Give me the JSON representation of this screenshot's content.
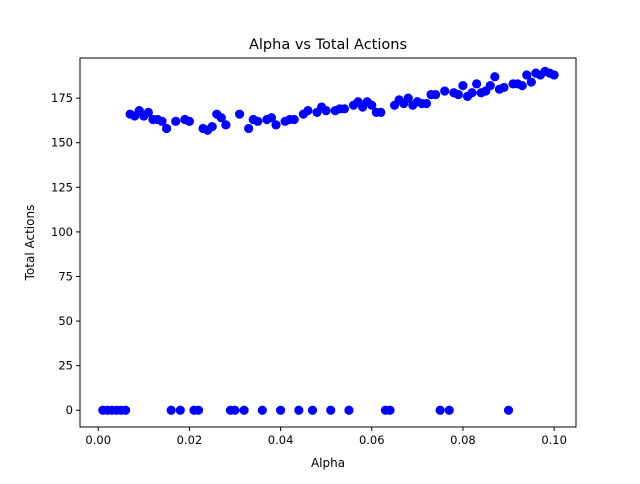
{
  "chart_data": {
    "type": "scatter",
    "title": "Alpha vs Total Actions",
    "xlabel": "Alpha",
    "ylabel": "Total Actions",
    "xlim": [
      -0.004,
      0.1048
    ],
    "ylim": [
      -9.4,
      197.5
    ],
    "xticks": [
      0.0,
      0.02,
      0.04,
      0.06,
      0.08,
      0.1
    ],
    "xtick_labels": [
      "0.00",
      "0.02",
      "0.04",
      "0.06",
      "0.08",
      "0.10"
    ],
    "yticks": [
      0,
      25,
      50,
      75,
      100,
      125,
      150,
      175
    ],
    "ytick_labels": [
      "0",
      "25",
      "50",
      "75",
      "100",
      "125",
      "150",
      "175"
    ],
    "grid": false,
    "marker_color": "#0000ff",
    "series": [
      {
        "x": [
          0.001,
          0.002,
          0.003,
          0.004,
          0.005,
          0.006,
          0.016,
          0.018,
          0.021,
          0.022,
          0.029,
          0.03,
          0.032,
          0.036,
          0.04,
          0.044,
          0.047,
          0.051,
          0.055,
          0.063,
          0.064,
          0.075,
          0.077,
          0.09,
          0.007,
          0.008,
          0.009,
          0.01,
          0.011,
          0.012,
          0.013,
          0.014,
          0.015,
          0.017,
          0.019,
          0.02,
          0.023,
          0.024,
          0.025,
          0.026,
          0.027,
          0.028,
          0.031,
          0.033,
          0.034,
          0.035,
          0.037,
          0.038,
          0.039,
          0.041,
          0.042,
          0.043,
          0.045,
          0.046,
          0.048,
          0.049,
          0.05,
          0.052,
          0.053,
          0.054,
          0.056,
          0.057,
          0.058,
          0.059,
          0.06,
          0.061,
          0.062,
          0.065,
          0.066,
          0.067,
          0.068,
          0.069,
          0.07,
          0.071,
          0.072,
          0.073,
          0.074,
          0.076,
          0.078,
          0.079,
          0.08,
          0.081,
          0.082,
          0.083,
          0.084,
          0.085,
          0.086,
          0.087,
          0.088,
          0.089,
          0.091,
          0.092,
          0.093,
          0.094,
          0.095,
          0.096,
          0.097,
          0.098,
          0.099,
          0.1
        ],
        "y": [
          0,
          0,
          0,
          0,
          0,
          0,
          0,
          0,
          0,
          0,
          0,
          0,
          0,
          0,
          0,
          0,
          0,
          0,
          0,
          0,
          0,
          0,
          0,
          0,
          166,
          165,
          168,
          165,
          167,
          163,
          163,
          162,
          158,
          162,
          163,
          162,
          158,
          157,
          159,
          166,
          164,
          160,
          166,
          158,
          163,
          162,
          163,
          164,
          160,
          162,
          163,
          163,
          166,
          168,
          167,
          170,
          168,
          168,
          169,
          169,
          171,
          173,
          170,
          173,
          171,
          167,
          167,
          171,
          174,
          172,
          175,
          171,
          173,
          172,
          172,
          177,
          177,
          179,
          178,
          177,
          182,
          176,
          178,
          183,
          178,
          179,
          182,
          187,
          180,
          181,
          183,
          183,
          182,
          188,
          184,
          189,
          188,
          190,
          189,
          188
        ]
      }
    ]
  }
}
